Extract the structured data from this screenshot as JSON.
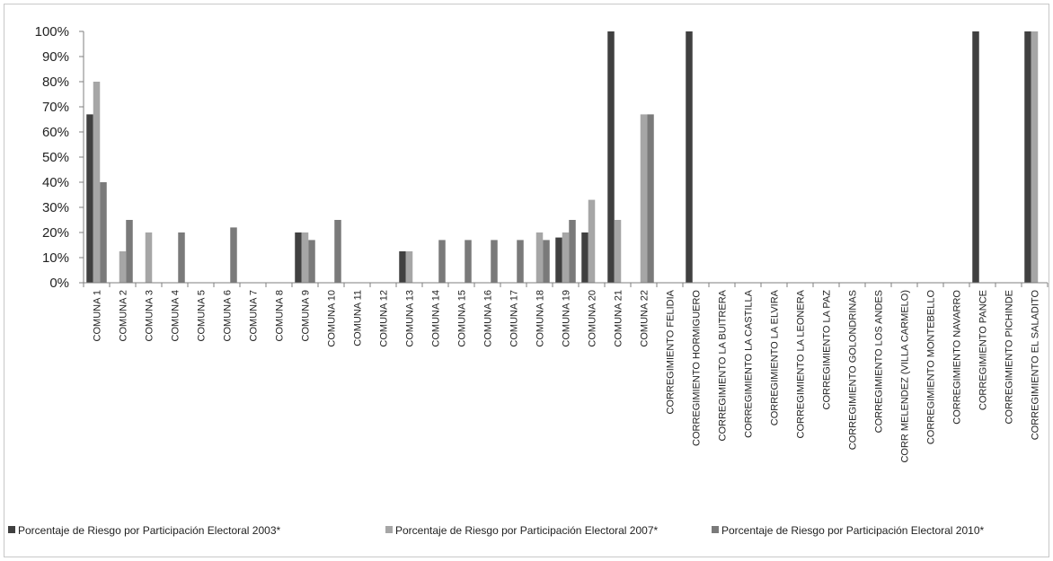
{
  "chart_data": {
    "type": "bar",
    "categories": [
      "COMUNA 1",
      "COMUNA 2",
      "COMUNA 3",
      "COMUNA 4",
      "COMUNA 5",
      "COMUNA 6",
      "COMUNA 7",
      "COMUNA 8",
      "COMUNA 9",
      "COMUNA 10",
      "COMUNA 11",
      "COMUNA 12",
      "COMUNA 13",
      "COMUNA 14",
      "COMUNA 15",
      "COMUNA 16",
      "COMUNA 17",
      "COMUNA 18",
      "COMUNA 19",
      "COMUNA 20",
      "COMUNA 21",
      "COMUNA 22",
      "CORREGIMIENTO FELIDIA",
      "CORREGIMIENTO HORMIGUERO",
      "CORREGIMIENTO LA BUITRERA",
      "CORREGIMIENTO LA CASTILLA",
      "CORREGIMIENTO LA ELVIRA",
      "CORREGIMIENTO LA LEONERA",
      "CORREGIMIENTO LA PAZ",
      "CORREGIMIENTO GOLONDRINAS",
      "CORREGIMIENTO LOS ANDES",
      "CORR MELENDEZ (VILLA CARMELO)",
      "CORREGIMIENTO MONTEBELLO",
      "CORREGIMIENTO NAVARRO",
      "CORREGIMIENTO PANCE",
      "CORREGIMIENTO PICHINDE",
      "CORREGIMIENTO EL SALADITO"
    ],
    "series": [
      {
        "name": "Porcentaje de Riesgo por Participación Electoral 2003*",
        "color": "#404040",
        "values": [
          67,
          0,
          0,
          0,
          0,
          0,
          0,
          0,
          20,
          0,
          0,
          0,
          12.5,
          0,
          0,
          0,
          0,
          0,
          18,
          20,
          100,
          0,
          0,
          100,
          0,
          0,
          0,
          0,
          0,
          0,
          0,
          0,
          0,
          0,
          100,
          0,
          100
        ]
      },
      {
        "name": "Porcentaje de Riesgo por Participación Electoral 2007*",
        "color": "#a6a6a6",
        "values": [
          80,
          12.5,
          20,
          0,
          0,
          0,
          0,
          0,
          20,
          0,
          0,
          0,
          12.5,
          0,
          0,
          0,
          0,
          20,
          20,
          33,
          25,
          67,
          0,
          0,
          0,
          0,
          0,
          0,
          0,
          0,
          0,
          0,
          0,
          0,
          0,
          0,
          100
        ]
      },
      {
        "name": "Porcentaje de Riesgo por Participación Electoral 2010*",
        "color": "#7a7a7a",
        "values": [
          40,
          25,
          0,
          20,
          0,
          22,
          0,
          0,
          17,
          25,
          0,
          0,
          0,
          17,
          17,
          17,
          17,
          17,
          25,
          0,
          0,
          67,
          0,
          0,
          0,
          0,
          0,
          0,
          0,
          0,
          0,
          0,
          0,
          0,
          0,
          0,
          0
        ]
      }
    ],
    "ylim": [
      0,
      100
    ],
    "yticks": [
      "0%",
      "10%",
      "20%",
      "30%",
      "40%",
      "50%",
      "60%",
      "70%",
      "80%",
      "90%",
      "100%"
    ],
    "grid": false,
    "legend_position": "bottom",
    "title": "",
    "xlabel": "",
    "ylabel": ""
  }
}
